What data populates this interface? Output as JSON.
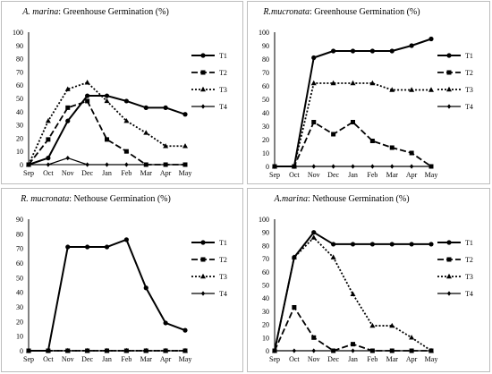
{
  "chart_data": [
    {
      "type": "line",
      "title_species": "A. marina",
      "title_rest": ": Greenhouse Germination (%)",
      "categories": [
        "Sep",
        "Oct",
        "Nov",
        "Dec",
        "Jan",
        "Feb",
        "Mar",
        "Apr",
        "May"
      ],
      "ylim": [
        0,
        100
      ],
      "yticks": [
        0,
        10,
        20,
        30,
        40,
        50,
        60,
        70,
        80,
        90,
        100
      ],
      "series": [
        {
          "name": "T1",
          "values": [
            0,
            5,
            33,
            52,
            52,
            48,
            43,
            43,
            38
          ]
        },
        {
          "name": "T2",
          "values": [
            0,
            19,
            43,
            48,
            19,
            10,
            0,
            0,
            0
          ]
        },
        {
          "name": "T3",
          "values": [
            0,
            33,
            57,
            62,
            48,
            33,
            24,
            14,
            14
          ]
        },
        {
          "name": "T4",
          "values": [
            0,
            0,
            5,
            0,
            0,
            0,
            0,
            0,
            0
          ]
        }
      ]
    },
    {
      "type": "line",
      "title_species": "R.mucronata",
      "title_rest": ": Greenhouse Germination (%)",
      "categories": [
        "Sep",
        "Oct",
        "Nov",
        "Dec",
        "Jan",
        "Feb",
        "Mar",
        "Apr",
        "May"
      ],
      "ylim": [
        0,
        100
      ],
      "yticks": [
        0,
        10,
        20,
        30,
        40,
        50,
        60,
        70,
        80,
        90,
        100
      ],
      "series": [
        {
          "name": "T1",
          "values": [
            0,
            0,
            81,
            86,
            86,
            86,
            86,
            90,
            95
          ]
        },
        {
          "name": "T2",
          "values": [
            0,
            0,
            33,
            24,
            33,
            19,
            14,
            10,
            0
          ]
        },
        {
          "name": "T3",
          "values": [
            0,
            0,
            62,
            62,
            62,
            62,
            57,
            57,
            57
          ]
        },
        {
          "name": "T4",
          "values": [
            0,
            0,
            0,
            0,
            0,
            0,
            0,
            0,
            0
          ]
        }
      ]
    },
    {
      "type": "line",
      "title_species": "R. mucronata",
      "title_rest": ": Nethouse Germination (%)",
      "categories": [
        "Sep",
        "Oct",
        "Nov",
        "Dec",
        "Jan",
        "Feb",
        "Mar",
        "Apr",
        "May"
      ],
      "ylim": [
        0,
        90
      ],
      "yticks": [
        0,
        10,
        20,
        30,
        40,
        50,
        60,
        70,
        80,
        90
      ],
      "series": [
        {
          "name": "T1",
          "values": [
            0,
            0,
            71,
            71,
            71,
            76,
            43,
            19,
            14
          ]
        },
        {
          "name": "T2",
          "values": [
            0,
            0,
            0,
            0,
            0,
            0,
            0,
            0,
            0
          ]
        },
        {
          "name": "T3",
          "values": [
            0,
            0,
            0,
            0,
            0,
            0,
            0,
            0,
            0
          ]
        },
        {
          "name": "T4",
          "values": [
            0,
            0,
            0,
            0,
            0,
            0,
            0,
            0,
            0
          ]
        }
      ]
    },
    {
      "type": "line",
      "title_species": "A.marina",
      "title_rest": ": Nethouse Germination (%)",
      "categories": [
        "Sep",
        "Oct",
        "Nov",
        "Dec",
        "Jan",
        "Feb",
        "Mar",
        "Apr",
        "May"
      ],
      "ylim": [
        0,
        100
      ],
      "yticks": [
        0,
        10,
        20,
        30,
        40,
        50,
        60,
        70,
        80,
        90,
        100
      ],
      "series": [
        {
          "name": "T1",
          "values": [
            0,
            71,
            90,
            81,
            81,
            81,
            81,
            81,
            81
          ]
        },
        {
          "name": "T2",
          "values": [
            0,
            33,
            10,
            0,
            5,
            0,
            0,
            0,
            0
          ]
        },
        {
          "name": "T3",
          "values": [
            0,
            71,
            86,
            71,
            43,
            19,
            19,
            10,
            0
          ]
        },
        {
          "name": "T4",
          "values": [
            0,
            0,
            0,
            0,
            0,
            0,
            0,
            0,
            0
          ]
        }
      ]
    }
  ]
}
